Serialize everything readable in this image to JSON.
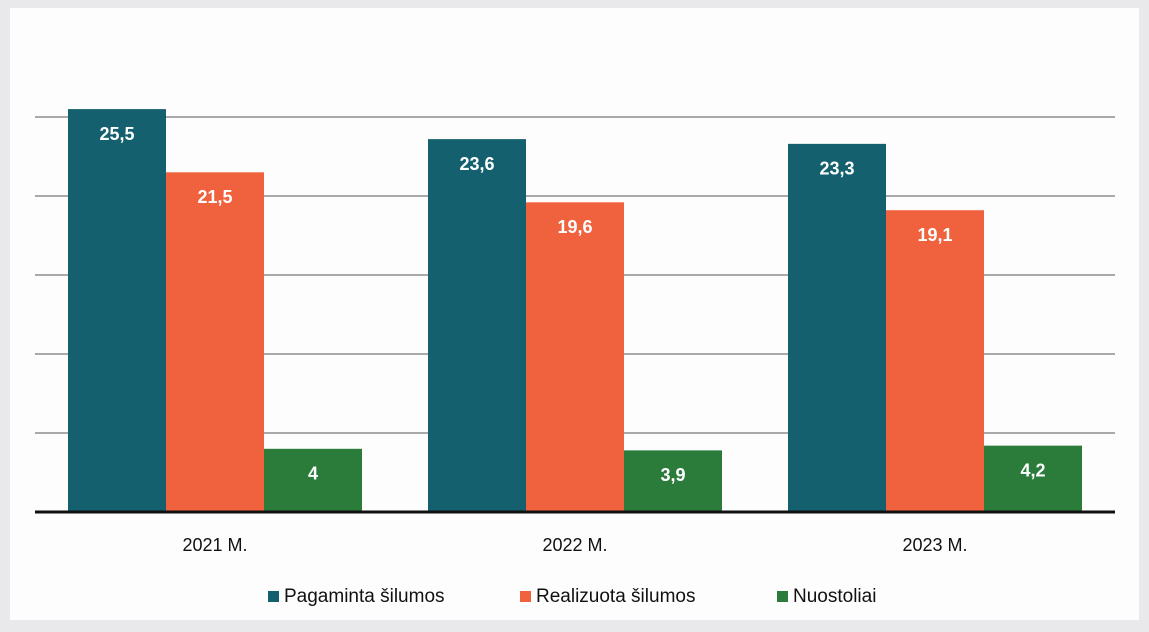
{
  "chart_data": {
    "type": "bar",
    "categories": [
      "2021 M.",
      "2022 M.",
      "2023 M."
    ],
    "series": [
      {
        "name": "Pagaminta šilumos",
        "color": "#14606f",
        "values": [
          25.5,
          23.6,
          23.3
        ],
        "value_labels": [
          "25,5",
          "23,6",
          "23,3"
        ]
      },
      {
        "name": "Realizuota šilumos",
        "color": "#f0613d",
        "values": [
          21.5,
          19.6,
          19.1
        ],
        "value_labels": [
          "21,5",
          "19,6",
          "19,1"
        ]
      },
      {
        "name": "Nuostoliai",
        "color": "#2b7b3b",
        "values": [
          4,
          3.9,
          4.2
        ],
        "value_labels": [
          "4",
          "3,9",
          "4,2"
        ]
      }
    ],
    "ylim": [
      0,
      30
    ],
    "yticks": [
      0,
      5,
      10,
      15,
      20,
      25
    ],
    "grid": true
  }
}
